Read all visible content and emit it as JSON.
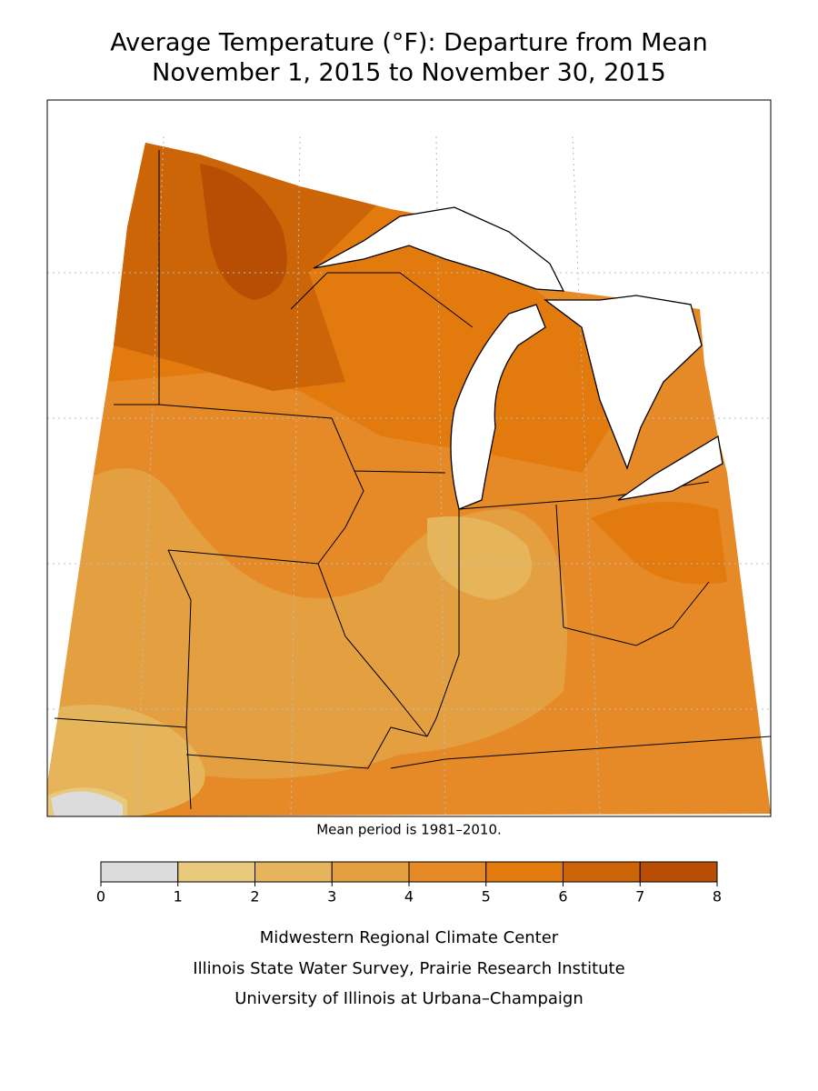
{
  "title": [
    "Average Temperature (°F): Departure from Mean",
    "November 1, 2015 to November 30, 2015"
  ],
  "note": "Mean period is 1981–2010.",
  "legend": {
    "ticks": [
      0,
      1,
      2,
      3,
      4,
      5,
      6,
      7,
      8
    ],
    "colors": [
      "#dcdcdc",
      "#e8c87a",
      "#e6b45a",
      "#e4a040",
      "#e68a28",
      "#e27a0e",
      "#cc6408",
      "#b84e04"
    ]
  },
  "credits": [
    "Midwestern Regional Climate Center",
    "Illinois State Water Survey, Prairie Research Institute",
    "University of Illinois at Urbana–Champaign"
  ]
}
